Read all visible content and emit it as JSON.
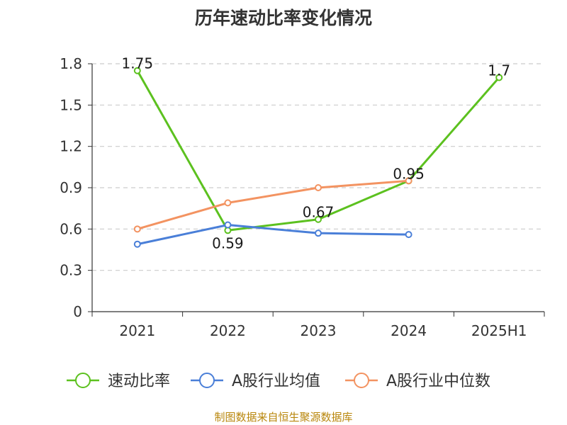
{
  "source": "制图数据来自恒生聚源数据库",
  "chart_data": {
    "type": "line",
    "title": "历年速动比率变化情况",
    "categories": [
      "2021",
      "2022",
      "2023",
      "2024",
      "2025H1"
    ],
    "ylim": [
      0,
      1.8
    ],
    "yticks": [
      "0",
      "0.3",
      "0.6",
      "0.9",
      "1.2",
      "1.5",
      "1.8"
    ],
    "grid": true,
    "legend_position": "bottom",
    "series": [
      {
        "name": "速动比率",
        "color": "#5cc11f",
        "values": [
          1.75,
          0.59,
          0.67,
          0.95,
          1.7
        ],
        "labels": [
          "1.75",
          "0.59",
          "0.67",
          "0.95",
          "1.7"
        ]
      },
      {
        "name": "A股行业均值",
        "color": "#4a7fd8",
        "values": [
          0.49,
          0.63,
          0.57,
          0.56,
          null
        ]
      },
      {
        "name": "A股行业中位数",
        "color": "#f39361",
        "values": [
          0.6,
          0.79,
          0.9,
          0.95,
          null
        ]
      }
    ]
  }
}
